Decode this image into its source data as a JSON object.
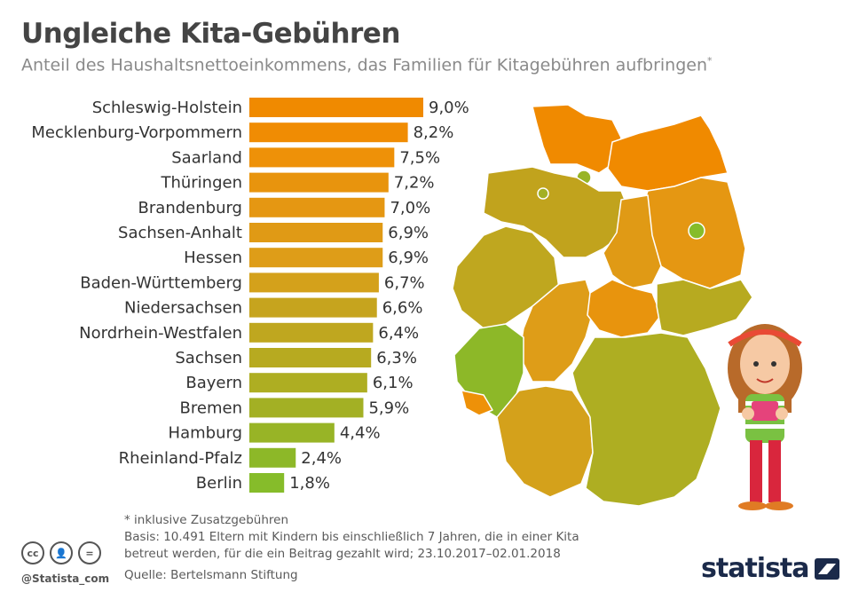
{
  "header": {
    "title": "Ungleiche Kita-Gebühren",
    "subtitle": "Anteil des Haushaltsnettoeinkommens, das Familien für Kitagebühren aufbringen",
    "subtitle_mark": "*"
  },
  "chart_data": {
    "type": "bar",
    "orientation": "horizontal",
    "title": "Ungleiche Kita-Gebühren",
    "subtitle": "Anteil des Haushaltsnettoeinkommens, das Familien für Kitagebühren aufbringen*",
    "categories": [
      "Schleswig-Holstein",
      "Mecklenburg-Vorpommern",
      "Saarland",
      "Thüringen",
      "Brandenburg",
      "Sachsen-Anhalt",
      "Hessen",
      "Baden-Württemberg",
      "Niedersachsen",
      "Nordrhein-Westfalen",
      "Sachsen",
      "Bayern",
      "Bremen",
      "Hamburg",
      "Rheinland-Pfalz",
      "Berlin"
    ],
    "values": [
      9.0,
      8.2,
      7.5,
      7.2,
      7.0,
      6.9,
      6.9,
      6.7,
      6.6,
      6.4,
      6.3,
      6.1,
      5.9,
      4.4,
      2.4,
      1.8
    ],
    "labels": [
      "9,0%",
      "8,2%",
      "7,5%",
      "7,2%",
      "7,0%",
      "6,9%",
      "6,9%",
      "6,7%",
      "6,6%",
      "6,4%",
      "6,3%",
      "6,1%",
      "5,9%",
      "4,4%",
      "2,4%",
      "1,8%"
    ],
    "colors": [
      "#f08a00",
      "#f08c03",
      "#ee9108",
      "#e8940d",
      "#e59712",
      "#e09a15",
      "#de9d18",
      "#d4a11b",
      "#c6a41e",
      "#bfa71f",
      "#b7aa20",
      "#aeae22",
      "#a3b024",
      "#98b426",
      "#8db828",
      "#86bc2a"
    ],
    "xlim": [
      0,
      9.0
    ],
    "xlabel": "",
    "ylabel": ""
  },
  "map": {
    "colors": {
      "orange": "#f08a00",
      "dark_orange": "#e8900c",
      "olive": "#c1a31d",
      "olive_dark": "#b49e1c",
      "green": "#8cb82b",
      "light_green": "#a3b425"
    }
  },
  "footer": {
    "note1": "* inklusive Zusatzgebühren",
    "note2": "Basis: 10.491 Eltern mit Kindern bis einschließlich 7 Jahren, die in einer Kita",
    "note3": "betreut werden, für die ein Beitrag gezahlt wird; 23.10.2017–02.01.2018",
    "source": "Quelle: Bertelsmann Stiftung",
    "handle": "@Statista_com",
    "brand": "statista"
  }
}
